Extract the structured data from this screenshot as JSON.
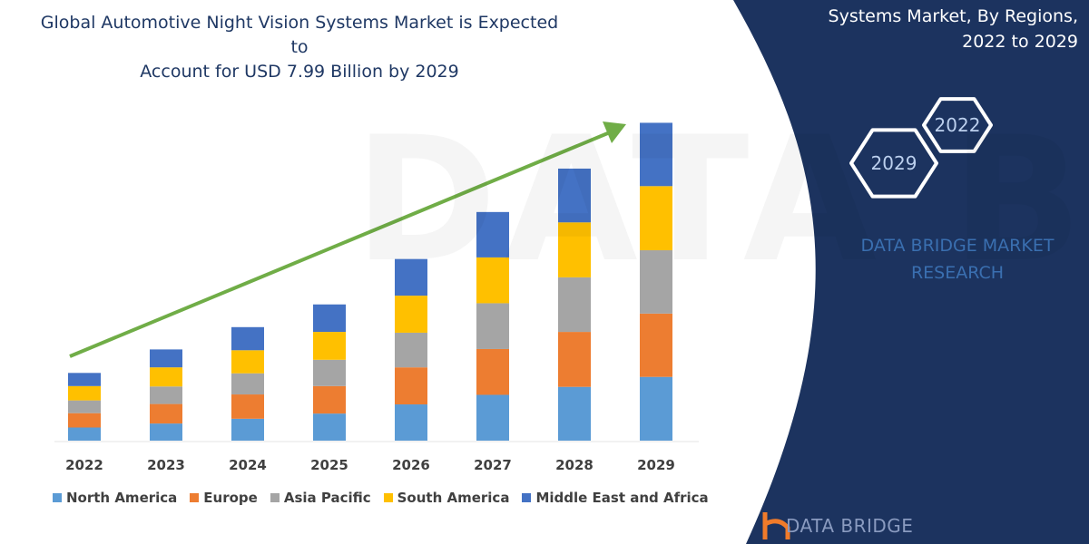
{
  "title_lines": [
    "Global Automotive Night Vision Systems Market is Expected to",
    "Account for USD 7.99 Billion by 2029"
  ],
  "side_panel": {
    "title_lines": [
      "Systems Market, By Regions,",
      "2022 to 2029"
    ],
    "hex_labels": [
      "2022",
      "2029"
    ],
    "brand_lines": [
      "DATA BRIDGE MARKET",
      "RESEARCH"
    ],
    "logo_text": "DATA BRIDGE",
    "background_color": "#1c335f"
  },
  "watermark": "DATA BRIDGE",
  "chart_data": {
    "type": "bar",
    "stacked": true,
    "categories": [
      "2022",
      "2023",
      "2024",
      "2025",
      "2026",
      "2027",
      "2028",
      "2029"
    ],
    "series": [
      {
        "name": "North America",
        "color": "#5b9bd5",
        "values": [
          0.33,
          0.43,
          0.55,
          0.68,
          0.91,
          1.15,
          1.35,
          1.6
        ]
      },
      {
        "name": "Europe",
        "color": "#ed7d31",
        "values": [
          0.36,
          0.49,
          0.61,
          0.69,
          0.93,
          1.15,
          1.38,
          1.59
        ]
      },
      {
        "name": "Asia Pacific",
        "color": "#a5a5a5",
        "values": [
          0.32,
          0.44,
          0.53,
          0.66,
          0.87,
          1.15,
          1.37,
          1.59
        ]
      },
      {
        "name": "South America",
        "color": "#ffc000",
        "values": [
          0.36,
          0.48,
          0.58,
          0.7,
          0.93,
          1.15,
          1.38,
          1.61
        ]
      },
      {
        "name": "Middle East and Africa",
        "color": "#4472c4",
        "values": [
          0.33,
          0.45,
          0.58,
          0.69,
          0.92,
          1.14,
          1.35,
          1.59
        ]
      }
    ],
    "ylim": [
      0,
      8
    ],
    "yaxis_visible": false,
    "grid": false,
    "legend_position": "bottom",
    "trend_arrow": {
      "color": "#70ad47",
      "from": "2022",
      "to": "2029"
    }
  }
}
